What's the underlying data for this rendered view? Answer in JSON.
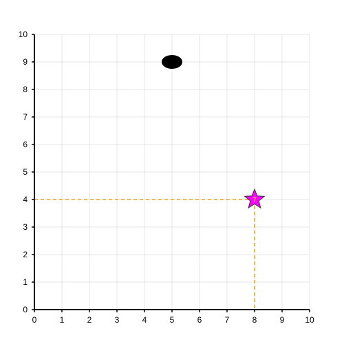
{
  "chart_data": {
    "type": "scatter",
    "x_range": [
      0,
      10
    ],
    "y_range": [
      0,
      10
    ],
    "x_ticks": [
      "0",
      "1",
      "2",
      "3",
      "4",
      "5",
      "6",
      "7",
      "8",
      "9",
      "10"
    ],
    "y_ticks": [
      "0",
      "1",
      "2",
      "3",
      "4",
      "5",
      "6",
      "7",
      "8",
      "9",
      "10"
    ],
    "grid": true,
    "grid_color": "#e6e6e6",
    "axis_color": "#000000",
    "points": [
      {
        "x": 5,
        "y": 9,
        "marker": "ellipse",
        "color": "#000000"
      },
      {
        "x": 8,
        "y": 4,
        "marker": "star",
        "color": "#ff00ff",
        "stroke": "#333333",
        "label": "7",
        "label_color": "#ffff00"
      }
    ],
    "guide_lines": {
      "x": 8,
      "y": 4,
      "color": "#e8a317",
      "style": "dashed"
    }
  }
}
